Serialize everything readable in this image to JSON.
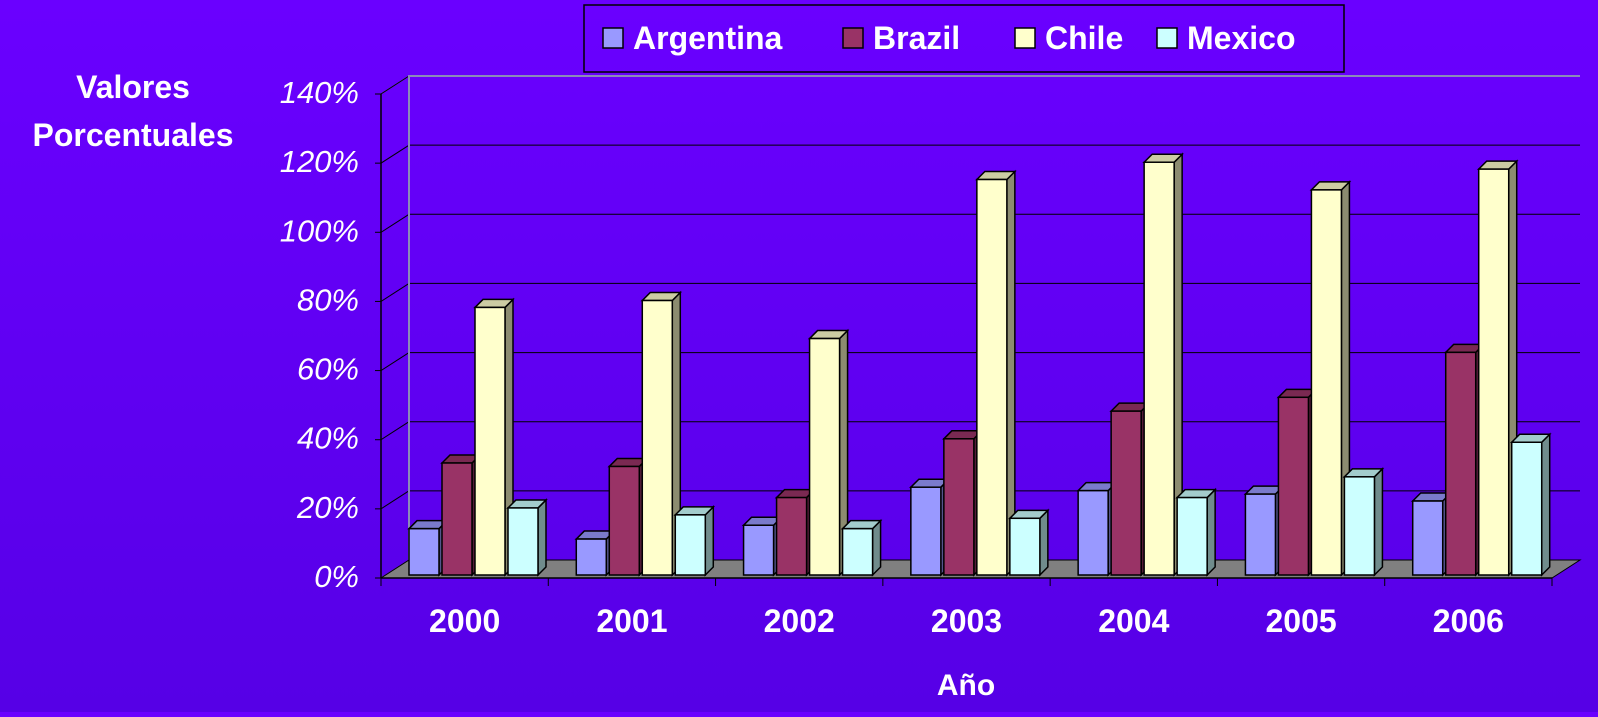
{
  "chart_data": {
    "type": "bar",
    "title": "",
    "xlabel": "Año",
    "ylabel_lines": [
      "Valores",
      "Porcentuales"
    ],
    "categories": [
      "2000",
      "2001",
      "2002",
      "2003",
      "2004",
      "2005",
      "2006"
    ],
    "series": [
      {
        "name": "Argentina",
        "color": "#9999ff",
        "values": [
          0.16,
          0.13,
          0.17,
          0.28,
          0.27,
          0.26,
          0.24
        ]
      },
      {
        "name": "Brazil",
        "color": "#993366",
        "values": [
          0.35,
          0.34,
          0.25,
          0.42,
          0.5,
          0.54,
          0.67
        ]
      },
      {
        "name": "Chile",
        "color": "#ffffcc",
        "values": [
          0.8,
          0.82,
          0.71,
          1.17,
          1.22,
          1.14,
          1.2
        ]
      },
      {
        "name": "Mexico",
        "color": "#ccffff",
        "values": [
          0.22,
          0.2,
          0.16,
          0.19,
          0.25,
          0.31,
          0.41
        ]
      }
    ],
    "yticks": [
      "0%",
      "20%",
      "40%",
      "60%",
      "80%",
      "100%",
      "120%",
      "140%"
    ],
    "ylim": [
      0,
      1.4
    ],
    "grid": true,
    "legend_position": "top",
    "colors": {
      "background": "#6200f5",
      "gridline": "#000000",
      "floor": "#808080",
      "text": "#ffffff"
    }
  }
}
